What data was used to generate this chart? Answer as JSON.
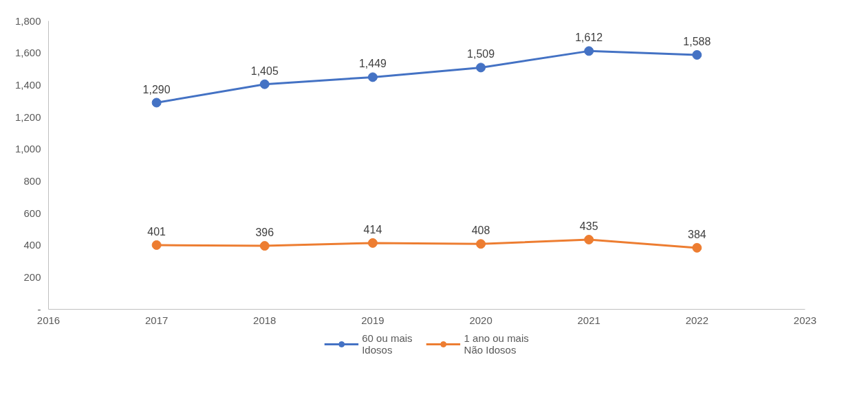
{
  "chart_data": {
    "type": "line",
    "x": [
      2017,
      2018,
      2019,
      2020,
      2021,
      2022
    ],
    "series": [
      {
        "name": "60 ou mais\nIdosos",
        "color": "#4472c4",
        "values": [
          1290,
          1405,
          1449,
          1509,
          1612,
          1588
        ],
        "value_labels": [
          "1,290",
          "1,405",
          "1,449",
          "1,509",
          "1,612",
          "1,588"
        ]
      },
      {
        "name": "1 ano ou mais\nNão Idosos",
        "color": "#ed7d31",
        "values": [
          401,
          396,
          414,
          408,
          435,
          384
        ],
        "value_labels": [
          "401",
          "396",
          "414",
          "408",
          "435",
          "384"
        ]
      }
    ],
    "xlim": [
      2016,
      2023
    ],
    "xticks": [
      2016,
      2017,
      2018,
      2019,
      2020,
      2021,
      2022,
      2023
    ],
    "ylim": [
      0,
      1800
    ],
    "yticks": [
      {
        "value": 0,
        "label": "-"
      },
      {
        "value": 200,
        "label": "200"
      },
      {
        "value": 400,
        "label": "400"
      },
      {
        "value": 600,
        "label": "600"
      },
      {
        "value": 800,
        "label": "800"
      },
      {
        "value": 1000,
        "label": "1,000"
      },
      {
        "value": 1200,
        "label": "1,200"
      },
      {
        "value": 1400,
        "label": "1,400"
      },
      {
        "value": 1600,
        "label": "1,600"
      },
      {
        "value": 1800,
        "label": "1,800"
      }
    ],
    "grid": false,
    "legend": "bottom",
    "marker": "circle",
    "line_style": "solid"
  }
}
